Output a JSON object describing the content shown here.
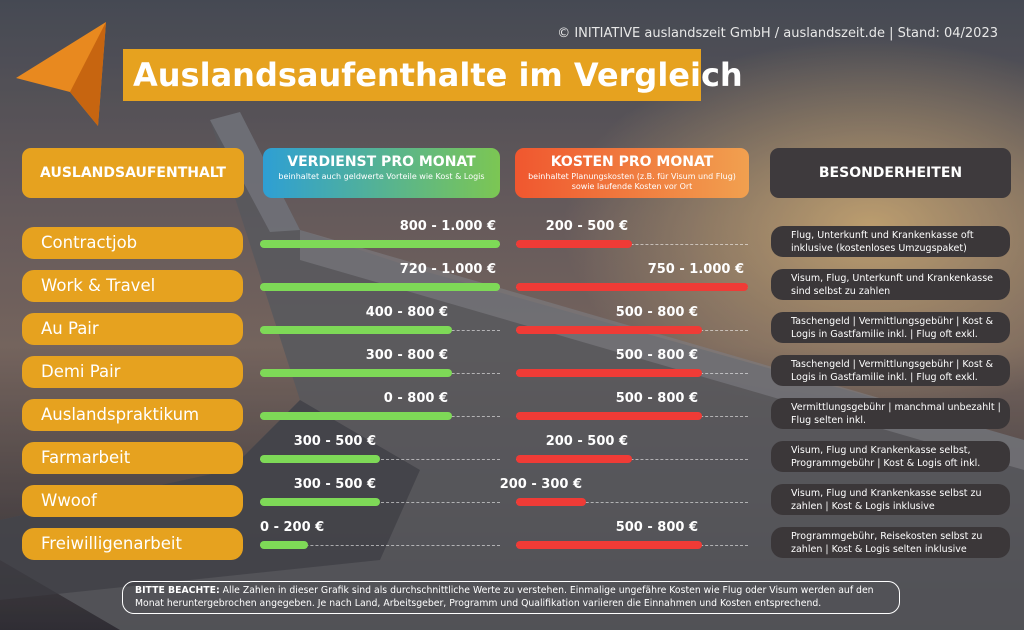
{
  "copyright": "© INITIATIVE auslandszeit GmbH / auslandszeit.de | Stand: 04/2023",
  "title": "Auslandsaufenthalte im Vergleich",
  "colors": {
    "orange": "#e6a21f",
    "green": "#7ed957",
    "red": "#ef3b36",
    "dark": "#3b3739"
  },
  "headers": {
    "stay": "AUSLANDSAUFENTHALT",
    "earnings": {
      "title": "VERDIENST PRO MONAT",
      "subtitle": "beinhaltet auch geldwerte Vorteile wie Kost & Logis"
    },
    "costs": {
      "title": "KOSTEN PRO MONAT",
      "subtitle": "beinhaltet Planungskosten (z.B. für Visum und Flug) sowie laufende Kosten vor Ort"
    },
    "special": "BESONDERHEITEN"
  },
  "rows": [
    {
      "label": "Contractjob",
      "earn_label": "800 - 1.000 €",
      "earn_value": 1000,
      "cost_label": "200 - 500 €",
      "cost_value": 500,
      "note": "Flug, Unterkunft und Krankenkasse oft inklusive (kostenloses Umzugspaket)"
    },
    {
      "label": "Work & Travel",
      "earn_label": "720 - 1.000 €",
      "earn_value": 1000,
      "cost_label": "750 - 1.000 €",
      "cost_value": 1000,
      "note": "Visum, Flug, Unterkunft und Krankenkasse sind selbst zu zahlen"
    },
    {
      "label": "Au Pair",
      "earn_label": "400 - 800 €",
      "earn_value": 800,
      "cost_label": "500 - 800 €",
      "cost_value": 800,
      "note": "Taschengeld | Vermittlungsgebühr | Kost & Logis in Gastfamilie inkl. | Flug oft exkl."
    },
    {
      "label": "Demi Pair",
      "earn_label": "300 - 800 €",
      "earn_value": 800,
      "cost_label": "500 - 800 €",
      "cost_value": 800,
      "note": "Taschengeld | Vermittlungsgebühr | Kost & Logis in Gastfamilie inkl. | Flug oft exkl."
    },
    {
      "label": "Auslandspraktikum",
      "earn_label": "0 - 800 €",
      "earn_value": 800,
      "cost_label": "500 - 800 €",
      "cost_value": 800,
      "note": "Vermittlungsgebühr | manchmal unbezahlt | Flug selten inkl."
    },
    {
      "label": "Farmarbeit",
      "earn_label": "300 - 500 €",
      "earn_value": 500,
      "cost_label": "200 - 500 €",
      "cost_value": 500,
      "note": "Visum, Flug und Krankenkasse selbst, Programmgebühr | Kost & Logis oft inkl."
    },
    {
      "label": "Wwoof",
      "earn_label": "300 - 500 €",
      "earn_value": 500,
      "cost_label": "200 - 300 €",
      "cost_value": 300,
      "note": "Visum, Flug und Krankenkasse selbst zu zahlen | Kost & Logis inklusive"
    },
    {
      "label": "Freiwilligenarbeit",
      "earn_label": "0 - 200 €",
      "earn_value": 200,
      "cost_label": "500 - 800 €",
      "cost_value": 800,
      "note": "Programmgebühr, Reisekosten selbst zu zahlen | Kost & Logis selten inklusive"
    }
  ],
  "footer": {
    "prefix": "BITTE BEACHTE:",
    "text": " Alle Zahlen in dieser Grafik sind als durchschnittliche Werte zu verstehen. Einmalige ungefähre  Kosten wie Flug oder Visum werden auf den Monat heruntergebrochen angegeben. Je nach Land, Arbeitsgeber, Programm und Qualifikation variieren die Einnahmen und Kosten entsprechend."
  }
}
